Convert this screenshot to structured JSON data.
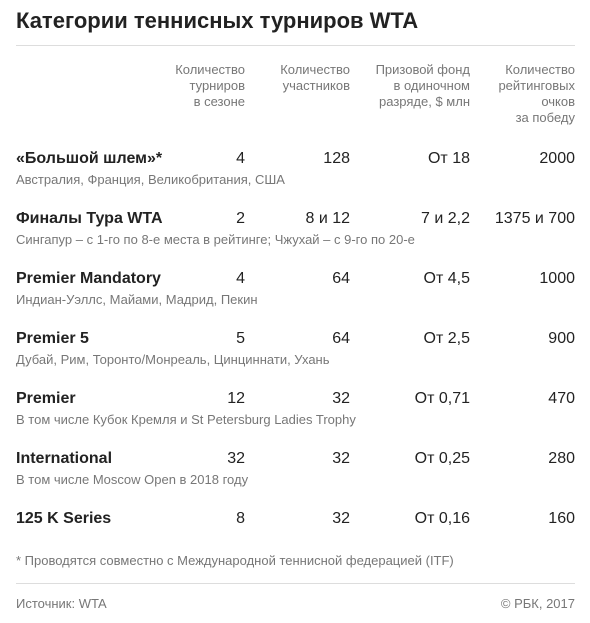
{
  "title": "Категории теннисных турниров WTA",
  "columns": [
    [
      "Количество",
      "турниров",
      "в сезоне"
    ],
    [
      "Количество",
      "участников"
    ],
    [
      "Призовой фонд",
      "в одиночном",
      "разряде, $ млн"
    ],
    [
      "Количество",
      "рейтинговых",
      "очков",
      "за победу"
    ]
  ],
  "rows": [
    {
      "name": "«Большой шлем»*",
      "note": "Австралия, Франция, Великобритания, США",
      "cells": [
        "4",
        "128",
        "От 18",
        "2000"
      ]
    },
    {
      "name": "Финалы Тура WTA",
      "note": "Сингапур – с 1-го по 8-е места в рейтинге; Чжухай – с 9-го по 20-е",
      "cells": [
        "2",
        "8 и 12",
        "7  и 2,2",
        "1375 и 700"
      ]
    },
    {
      "name": "Premier Mandatory",
      "note": "Индиан-Уэллс, Майами, Мадрид, Пекин",
      "cells": [
        "4",
        "64",
        "От 4,5",
        "1000"
      ]
    },
    {
      "name": "Premier 5",
      "note": "Дубай, Рим, Торонто/Монреаль, Цинциннати, Ухань",
      "cells": [
        "5",
        "64",
        "От 2,5",
        "900"
      ]
    },
    {
      "name": "Premier",
      "note": "В том числе Кубок Кремля и St Petersburg Ladies Trophy",
      "cells": [
        "12",
        "32",
        "От 0,71",
        "470"
      ]
    },
    {
      "name": "International",
      "note": "В том числе Moscow Open в 2018 году",
      "cells": [
        "32",
        "32",
        "От 0,25",
        "280"
      ]
    },
    {
      "name": "125 K Series",
      "cells": [
        "8",
        "32",
        "От 0,16",
        "160"
      ]
    }
  ],
  "footnote": "* Проводятся совместно с Международной теннисной федерацией (ITF)",
  "source": "Источник: WTA",
  "copyright": "© РБК, 2017"
}
